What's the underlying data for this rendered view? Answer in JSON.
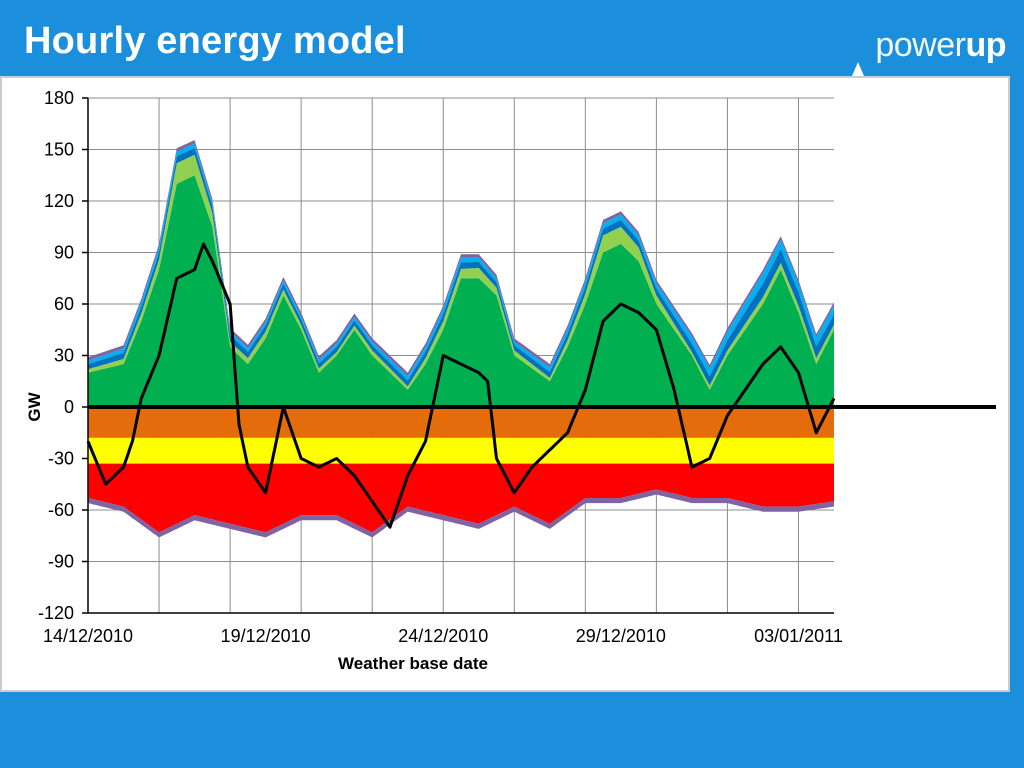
{
  "slide": {
    "title": "Hourly energy model",
    "logo_light": "power",
    "logo_bold": "up"
  },
  "colors": {
    "brand_blue": "#1b8fdc",
    "series_red": "#ff0000",
    "series_yellow": "#ffff00",
    "series_orange": "#e46c0a",
    "series_green": "#00b050",
    "series_light_green": "#92d050",
    "series_blue": "#0070c0",
    "series_light_blue": "#00b0f0",
    "series_purple": "#8064a2",
    "net_line": "#000000"
  },
  "chart_data": {
    "type": "area",
    "xlabel": "Weather base date",
    "ylabel": "GW",
    "ylim": [
      -120,
      180
    ],
    "yticks": [
      -120,
      -90,
      -60,
      -30,
      0,
      30,
      60,
      90,
      120,
      150,
      180
    ],
    "xlim": [
      "2010-12-14",
      "2011-01-04"
    ],
    "xtick_labels": [
      "14/12/2010",
      "19/12/2010",
      "24/12/2010",
      "29/12/2010",
      "03/01/2011"
    ],
    "grid": true,
    "legend": "none",
    "series": [
      {
        "stack": "positive",
        "color": "#00b050",
        "x": [
          "2010-12-14",
          "2010-12-15",
          "2010-12-15T12:00",
          "2010-12-16",
          "2010-12-16T12:00",
          "2010-12-17",
          "2010-12-17T12:00",
          "2010-12-18",
          "2010-12-18T12:00",
          "2010-12-19",
          "2010-12-19T12:00",
          "2010-12-20",
          "2010-12-20T12:00",
          "2010-12-21",
          "2010-12-21T12:00",
          "2010-12-22",
          "2010-12-23",
          "2010-12-23T12:00",
          "2010-12-24",
          "2010-12-24T12:00",
          "2010-12-25",
          "2010-12-25T12:00",
          "2010-12-26",
          "2010-12-27",
          "2010-12-27T12:00",
          "2010-12-28",
          "2010-12-28T12:00",
          "2010-12-29",
          "2010-12-29T12:00",
          "2010-12-30",
          "2010-12-31",
          "2010-12-31T12:00",
          "2011-01-01",
          "2011-01-01T12:00",
          "2011-01-02",
          "2011-01-02T12:00",
          "2011-01-03",
          "2011-01-03T12:00",
          "2011-01-04"
        ],
        "values": [
          20,
          25,
          50,
          80,
          130,
          135,
          105,
          35,
          25,
          40,
          65,
          45,
          20,
          30,
          45,
          30,
          10,
          25,
          45,
          75,
          75,
          65,
          30,
          15,
          35,
          60,
          90,
          95,
          85,
          60,
          30,
          10,
          30,
          45,
          60,
          80,
          55,
          25,
          45
        ]
      },
      {
        "stack": "positive",
        "color": "#92d050",
        "x": [
          "2010-12-14",
          "2010-12-15",
          "2010-12-16",
          "2010-12-16T12:00",
          "2010-12-17",
          "2010-12-17T12:00",
          "2010-12-18",
          "2010-12-19",
          "2010-12-20",
          "2010-12-21",
          "2010-12-22",
          "2010-12-23",
          "2010-12-24",
          "2010-12-25",
          "2010-12-26",
          "2010-12-27",
          "2010-12-28",
          "2010-12-28T12:00",
          "2010-12-29",
          "2010-12-29T12:00",
          "2010-12-30",
          "2010-12-31",
          "2011-01-01",
          "2011-01-02",
          "2011-01-03",
          "2011-01-04"
        ],
        "values": [
          2,
          3,
          6,
          12,
          12,
          8,
          3,
          4,
          3,
          2,
          3,
          2,
          5,
          6,
          3,
          2,
          6,
          10,
          10,
          8,
          5,
          2,
          3,
          4,
          4,
          3
        ]
      },
      {
        "stack": "positive",
        "color": "#0070c0",
        "x": [
          "2010-12-14",
          "2010-12-16",
          "2010-12-17",
          "2010-12-18",
          "2010-12-20",
          "2010-12-22",
          "2010-12-24",
          "2010-12-26",
          "2010-12-28",
          "2010-12-30",
          "2011-01-01",
          "2011-01-02",
          "2011-01-03",
          "2011-01-04"
        ],
        "values": [
          3,
          4,
          4,
          4,
          3,
          3,
          4,
          3,
          4,
          4,
          6,
          8,
          8,
          6
        ]
      },
      {
        "stack": "positive",
        "color": "#00b0f0",
        "x": [
          "2010-12-14",
          "2010-12-16",
          "2010-12-18",
          "2010-12-20",
          "2010-12-22",
          "2010-12-24",
          "2010-12-26",
          "2010-12-28",
          "2010-12-30",
          "2011-01-01",
          "2011-01-02",
          "2011-01-03",
          "2011-01-04"
        ],
        "values": [
          2,
          3,
          2,
          2,
          2,
          3,
          2,
          3,
          3,
          5,
          6,
          5,
          5
        ]
      },
      {
        "stack": "positive",
        "color": "#8064a2",
        "x": [
          "2010-12-14",
          "2011-01-04"
        ],
        "values": [
          2,
          2
        ]
      },
      {
        "stack": "negative",
        "color": "#e46c0a",
        "x": [
          "2010-12-14",
          "2011-01-04"
        ],
        "values": [
          -18,
          -18
        ]
      },
      {
        "stack": "negative",
        "color": "#ffff00",
        "x": [
          "2010-12-14",
          "2011-01-04"
        ],
        "values": [
          -15,
          -15
        ]
      },
      {
        "stack": "negative",
        "color": "#ff0000",
        "x": [
          "2010-12-14",
          "2010-12-15",
          "2010-12-16",
          "2010-12-17",
          "2010-12-18",
          "2010-12-19",
          "2010-12-20",
          "2010-12-21",
          "2010-12-22",
          "2010-12-23",
          "2010-12-24",
          "2010-12-25",
          "2010-12-26",
          "2010-12-27",
          "2010-12-28",
          "2010-12-29",
          "2010-12-30",
          "2010-12-31",
          "2011-01-01",
          "2011-01-02",
          "2011-01-03",
          "2011-01-04"
        ],
        "values": [
          -20,
          -25,
          -40,
          -30,
          -35,
          -40,
          -30,
          -30,
          -40,
          -25,
          -30,
          -35,
          -25,
          -35,
          -20,
          -20,
          -15,
          -20,
          -20,
          -25,
          -25,
          -22
        ]
      },
      {
        "stack": "negative",
        "color": "#8064a2",
        "x": [
          "2010-12-14",
          "2011-01-04"
        ],
        "values": [
          -3,
          -3
        ]
      }
    ],
    "net_line": {
      "color": "#000000",
      "x": [
        "2010-12-14",
        "2010-12-14T12:00",
        "2010-12-15",
        "2010-12-15T06:00",
        "2010-12-15T12:00",
        "2010-12-16",
        "2010-12-16T12:00",
        "2010-12-17",
        "2010-12-17T06:00",
        "2010-12-17T12:00",
        "2010-12-18",
        "2010-12-18T06:00",
        "2010-12-18T12:00",
        "2010-12-19",
        "2010-12-19T12:00",
        "2010-12-20",
        "2010-12-20T12:00",
        "2010-12-21",
        "2010-12-21T12:00",
        "2010-12-22",
        "2010-12-22T12:00",
        "2010-12-23",
        "2010-12-23T12:00",
        "2010-12-24",
        "2010-12-24T12:00",
        "2010-12-25",
        "2010-12-25T06:00",
        "2010-12-25T12:00",
        "2010-12-26",
        "2010-12-26T12:00",
        "2010-12-27",
        "2010-12-27T12:00",
        "2010-12-28",
        "2010-12-28T12:00",
        "2010-12-29",
        "2010-12-29T12:00",
        "2010-12-30",
        "2010-12-30T12:00",
        "2010-12-31",
        "2010-12-31T12:00",
        "2011-01-01",
        "2011-01-01T12:00",
        "2011-01-02",
        "2011-01-02T12:00",
        "2011-01-03",
        "2011-01-03T12:00",
        "2011-01-04"
      ],
      "values": [
        -20,
        -45,
        -35,
        -20,
        5,
        30,
        75,
        80,
        95,
        85,
        60,
        -10,
        -35,
        -50,
        0,
        -30,
        -35,
        -30,
        -40,
        -55,
        -70,
        -40,
        -20,
        30,
        25,
        20,
        15,
        -30,
        -50,
        -35,
        -25,
        -15,
        10,
        50,
        60,
        55,
        45,
        10,
        -35,
        -30,
        -5,
        10,
        25,
        35,
        20,
        -15,
        5
      ]
    }
  }
}
